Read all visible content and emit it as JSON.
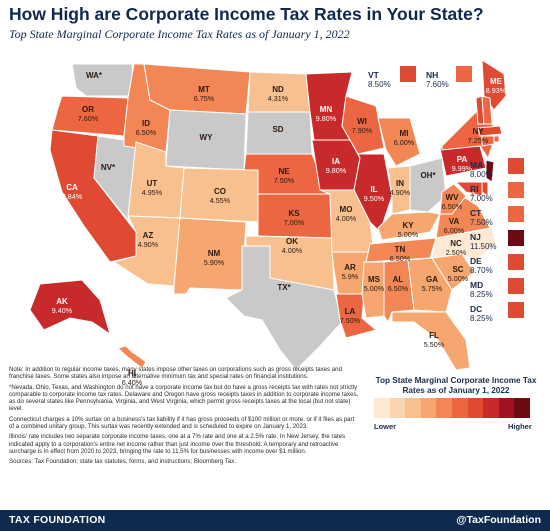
{
  "header": {
    "title": "How High are Corporate Income Tax Rates in Your State?",
    "subtitle": "Top State Marginal Corporate Income Tax Rates as of January 1, 2022"
  },
  "colors": {
    "none": "#c9c9c9",
    "scale": [
      "#fde9d4",
      "#fbd5b1",
      "#f9c08f",
      "#f6a66f",
      "#f28654",
      "#ec6741",
      "#e04a33",
      "#c8292a",
      "#a0131f",
      "#6e0a14"
    ],
    "text_dark": "#10284d",
    "footer_bg": "#0e2a4f"
  },
  "legend": {
    "title": "Top State Marginal Corporate Income Tax Rates as of January 1, 2022",
    "lower": "Lower",
    "higher": "Higher"
  },
  "states": {
    "WA": {
      "abbr": "WA*",
      "rate": ""
    },
    "OR": {
      "abbr": "OR",
      "rate": "7.60%"
    },
    "CA": {
      "abbr": "CA",
      "rate": "8.84%"
    },
    "NV": {
      "abbr": "NV*",
      "rate": ""
    },
    "ID": {
      "abbr": "ID",
      "rate": "6.50%"
    },
    "MT": {
      "abbr": "MT",
      "rate": "6.75%"
    },
    "WY": {
      "abbr": "WY",
      "rate": ""
    },
    "UT": {
      "abbr": "UT",
      "rate": "4.95%"
    },
    "AZ": {
      "abbr": "AZ",
      "rate": "4.90%"
    },
    "CO": {
      "abbr": "CO",
      "rate": "4.55%"
    },
    "NM": {
      "abbr": "NM",
      "rate": "5.90%"
    },
    "ND": {
      "abbr": "ND",
      "rate": "4.31%"
    },
    "SD": {
      "abbr": "SD",
      "rate": ""
    },
    "NE": {
      "abbr": "NE",
      "rate": "7.50%"
    },
    "KS": {
      "abbr": "KS",
      "rate": "7.00%"
    },
    "OK": {
      "abbr": "OK",
      "rate": "4.00%"
    },
    "TX": {
      "abbr": "TX*",
      "rate": ""
    },
    "MN": {
      "abbr": "MN",
      "rate": "9.80%"
    },
    "IA": {
      "abbr": "IA",
      "rate": "9.80%"
    },
    "MO": {
      "abbr": "MO",
      "rate": "4.00%"
    },
    "AR": {
      "abbr": "AR",
      "rate": "5.9%"
    },
    "LA": {
      "abbr": "LA",
      "rate": "7.50%"
    },
    "WI": {
      "abbr": "WI",
      "rate": "7.90%"
    },
    "IL": {
      "abbr": "IL",
      "rate": "9.50%"
    },
    "MI": {
      "abbr": "MI",
      "rate": "6.00%"
    },
    "IN": {
      "abbr": "IN",
      "rate": "4.90%"
    },
    "OH": {
      "abbr": "OH*",
      "rate": ""
    },
    "KY": {
      "abbr": "KY",
      "rate": "5.00%"
    },
    "TN": {
      "abbr": "TN",
      "rate": "6.50%"
    },
    "MS": {
      "abbr": "MS",
      "rate": "5.00%"
    },
    "AL": {
      "abbr": "AL",
      "rate": "6.50%"
    },
    "GA": {
      "abbr": "GA",
      "rate": "5.75%"
    },
    "FL": {
      "abbr": "FL",
      "rate": "5.50%"
    },
    "SC": {
      "abbr": "SC",
      "rate": "5.00%"
    },
    "NC": {
      "abbr": "NC",
      "rate": "2.50%"
    },
    "VA": {
      "abbr": "VA",
      "rate": "6.00%"
    },
    "WV": {
      "abbr": "WV",
      "rate": "6.50%"
    },
    "PA": {
      "abbr": "PA",
      "rate": "9.99%"
    },
    "NY": {
      "abbr": "NY",
      "rate": "7.25%"
    },
    "ME": {
      "abbr": "ME",
      "rate": "8.93%"
    },
    "VT": {
      "abbr": "VT",
      "rate": "8.50%"
    },
    "NH": {
      "abbr": "NH",
      "rate": "7.60%"
    },
    "MA": {
      "abbr": "MA",
      "rate": "8.00%"
    },
    "RI": {
      "abbr": "RI",
      "rate": "7.00%"
    },
    "CT": {
      "abbr": "CT",
      "rate": "7.50%"
    },
    "NJ": {
      "abbr": "NJ",
      "rate": "11.50%"
    },
    "DE": {
      "abbr": "DE",
      "rate": "8.70%"
    },
    "MD": {
      "abbr": "MD",
      "rate": "8.25%"
    },
    "DC": {
      "abbr": "DC",
      "rate": "8.25%"
    },
    "AK": {
      "abbr": "AK",
      "rate": "9.40%"
    },
    "HI": {
      "abbr": "HI",
      "rate": "6.40%"
    }
  },
  "notes": [
    "Note: In addition to regular income taxes, many states impose other taxes on corporations such as gross receipts taxes and franchise taxes. Some states also impose an alternative minimum tax and special rates on financial institutions.",
    "*Nevada, Ohio, Texas, and Washington do not have a corporate income tax but do have a gross receipts tax with rates not strictly comparable to corporate income tax rates. Delaware and Oregon have gross receipts taxes in addition to corporate income taxes, as do several states like Pennsylvania, Virginia, and West Virginia, which permit gross receipts taxes at the local (but not state) level.",
    "Connecticut charges a 10% surtax on a business's tax liability if it has gross proceeds of $100 million or more, or if it files as part of a combined unitary group. This surtax was recently extended and is scheduled to expire on January 1, 2023.",
    "Illinois' rate includes two separate corporate income taxes, one at a 7% rate and one at a 2.5% rate. In New Jersey, the rates indicated apply to a corporation's entire net income rather than just income over the threshold. A temporary and retroactive surcharge is in effect from 2020 to 2023, bringing the rate to 11.5% for businesses with income over $1 million.",
    "Sources: Tax Foundation; state tax statutes, forms, and instructions; Bloomberg Tax."
  ],
  "footer": {
    "brand": "TAX FOUNDATION",
    "handle": "@TaxFoundation"
  }
}
